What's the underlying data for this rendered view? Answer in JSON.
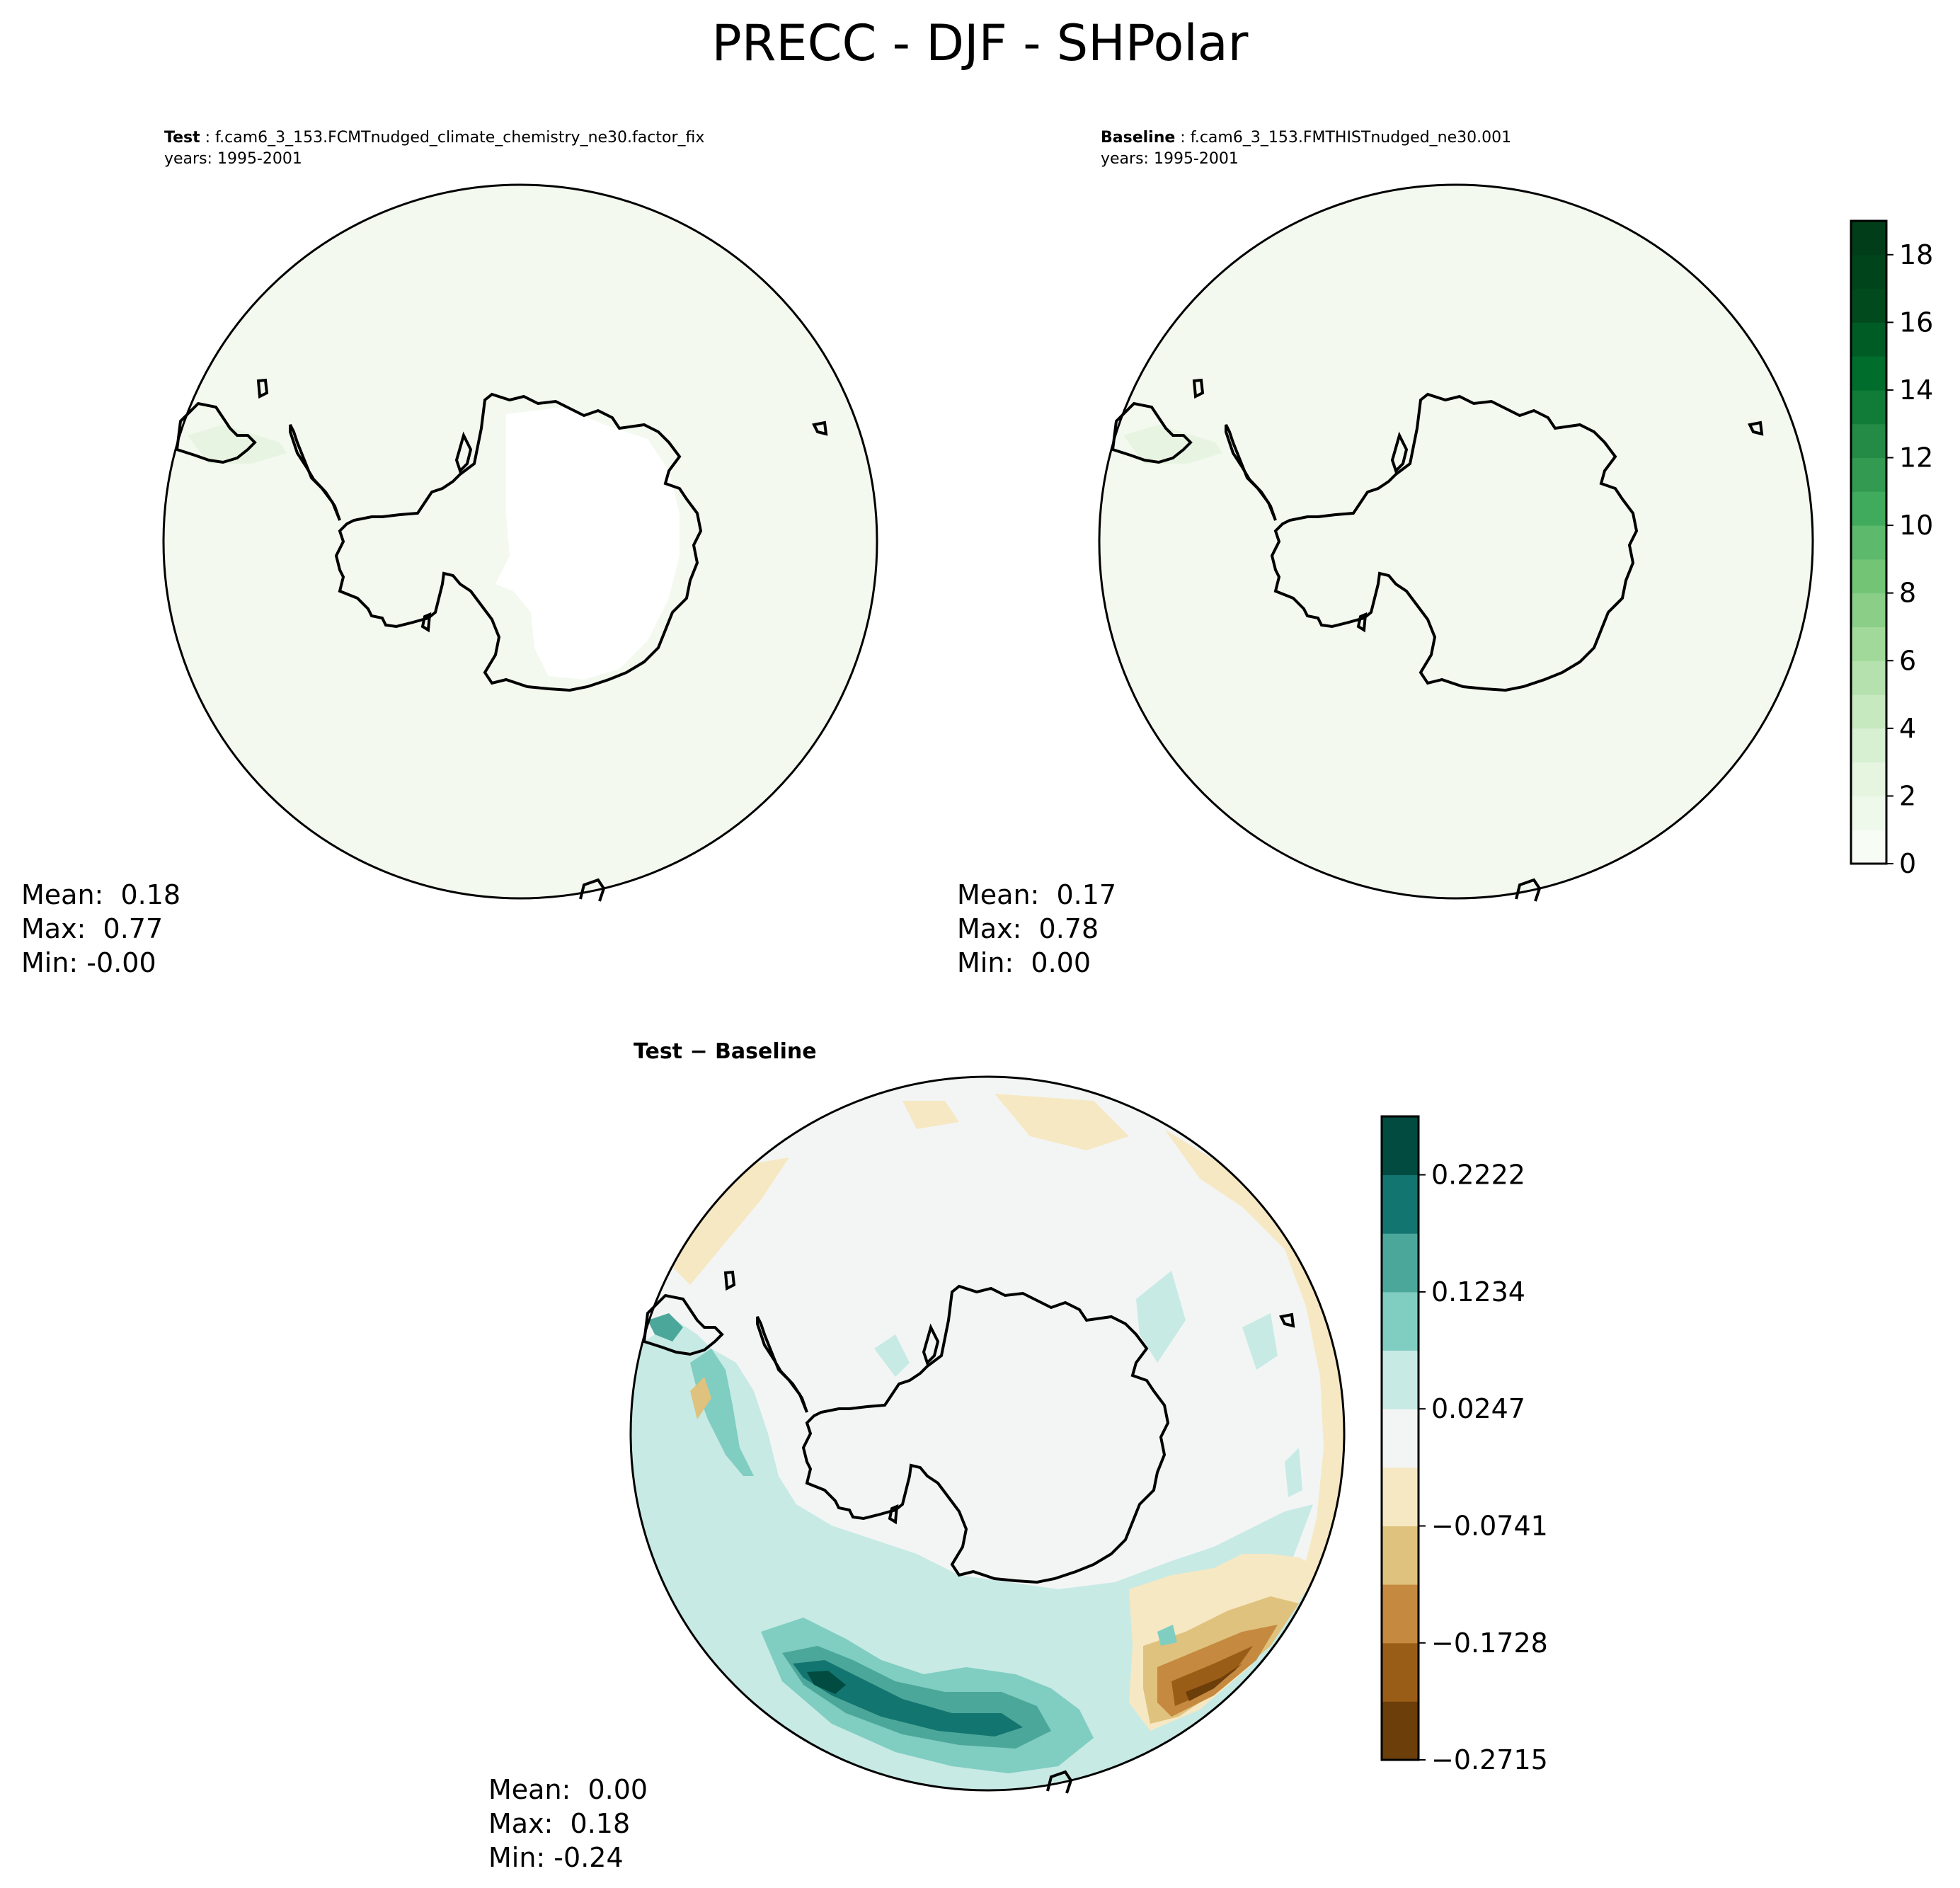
{
  "title": "PRECC - DJF - SHPolar",
  "panels": {
    "test": {
      "label": "Test",
      "case": "f.cam6_3_153.FCMTnudged_climate_chemistry_ne30.factor_fix",
      "years": "years: 1995-2001",
      "stats": {
        "mean": "Mean:  0.18",
        "max": "Max:  0.77",
        "min": "Min: -0.00"
      }
    },
    "baseline": {
      "label": "Baseline",
      "case": "f.cam6_3_153.FMTHISTnudged_ne30.001",
      "years": "years: 1995-2001",
      "stats": {
        "mean": "Mean:  0.17",
        "max": "Max:  0.78",
        "min": "Min:  0.00"
      }
    },
    "diff": {
      "label": "Test − Baseline",
      "stats": {
        "mean": "Mean:  0.00",
        "max": "Max:  0.18",
        "min": "Min: -0.24"
      }
    }
  },
  "chart_data": [
    {
      "type": "heatmap",
      "name": "test",
      "projection": "south-polar-stereographic",
      "field": "PRECC",
      "season": "DJF",
      "mean": 0.18,
      "max": 0.77,
      "min": -0.0,
      "colormap": "Greens",
      "levels": [
        0,
        1,
        2,
        3,
        4,
        5,
        6,
        7,
        8,
        9,
        10,
        11,
        12,
        13,
        14,
        15,
        16,
        17,
        18,
        19
      ]
    },
    {
      "type": "heatmap",
      "name": "baseline",
      "projection": "south-polar-stereographic",
      "field": "PRECC",
      "season": "DJF",
      "mean": 0.17,
      "max": 0.78,
      "min": 0.0,
      "colormap": "Greens",
      "levels": [
        0,
        1,
        2,
        3,
        4,
        5,
        6,
        7,
        8,
        9,
        10,
        11,
        12,
        13,
        14,
        15,
        16,
        17,
        18,
        19
      ]
    },
    {
      "type": "heatmap",
      "name": "test-minus-baseline",
      "projection": "south-polar-stereographic",
      "mean": 0.0,
      "max": 0.18,
      "min": -0.24,
      "colormap": "BrBG",
      "levels": [
        -0.2715,
        -0.2221,
        -0.1728,
        -0.1234,
        -0.0741,
        -0.0247,
        0.0247,
        0.0741,
        0.1234,
        0.1728,
        0.2222,
        0.2715
      ]
    }
  ],
  "colorbars": {
    "greens": {
      "ticks": [
        0,
        2,
        4,
        6,
        8,
        10,
        12,
        14,
        16,
        18
      ],
      "tick_labels": [
        "0",
        "2",
        "4",
        "6",
        "8",
        "10",
        "12",
        "14",
        "16",
        "18"
      ],
      "colors": [
        "#f7fcf5",
        "#eff9eb",
        "#e5f5e0",
        "#d8f0d2",
        "#c7e9c0",
        "#b4e1ad",
        "#a1d99b",
        "#8ace88",
        "#74c476",
        "#5db96b",
        "#41ab5d",
        "#329b51",
        "#238b45",
        "#117b38",
        "#006d2c",
        "#005c25",
        "#004a1e",
        "#00441b",
        "#003d18"
      ]
    },
    "brbg": {
      "tick_labels": [
        "−0.2715",
        "−0.1728",
        "−0.0741",
        "0.0247",
        "0.1234",
        "0.2222"
      ],
      "colors": [
        "#6b3e0a",
        "#9a5d17",
        "#c5893f",
        "#dfc27d",
        "#f6e8c3",
        "#f3f5f4",
        "#c7eae5",
        "#80cdc1",
        "#4ca79b",
        "#137570",
        "#014b40"
      ]
    }
  }
}
